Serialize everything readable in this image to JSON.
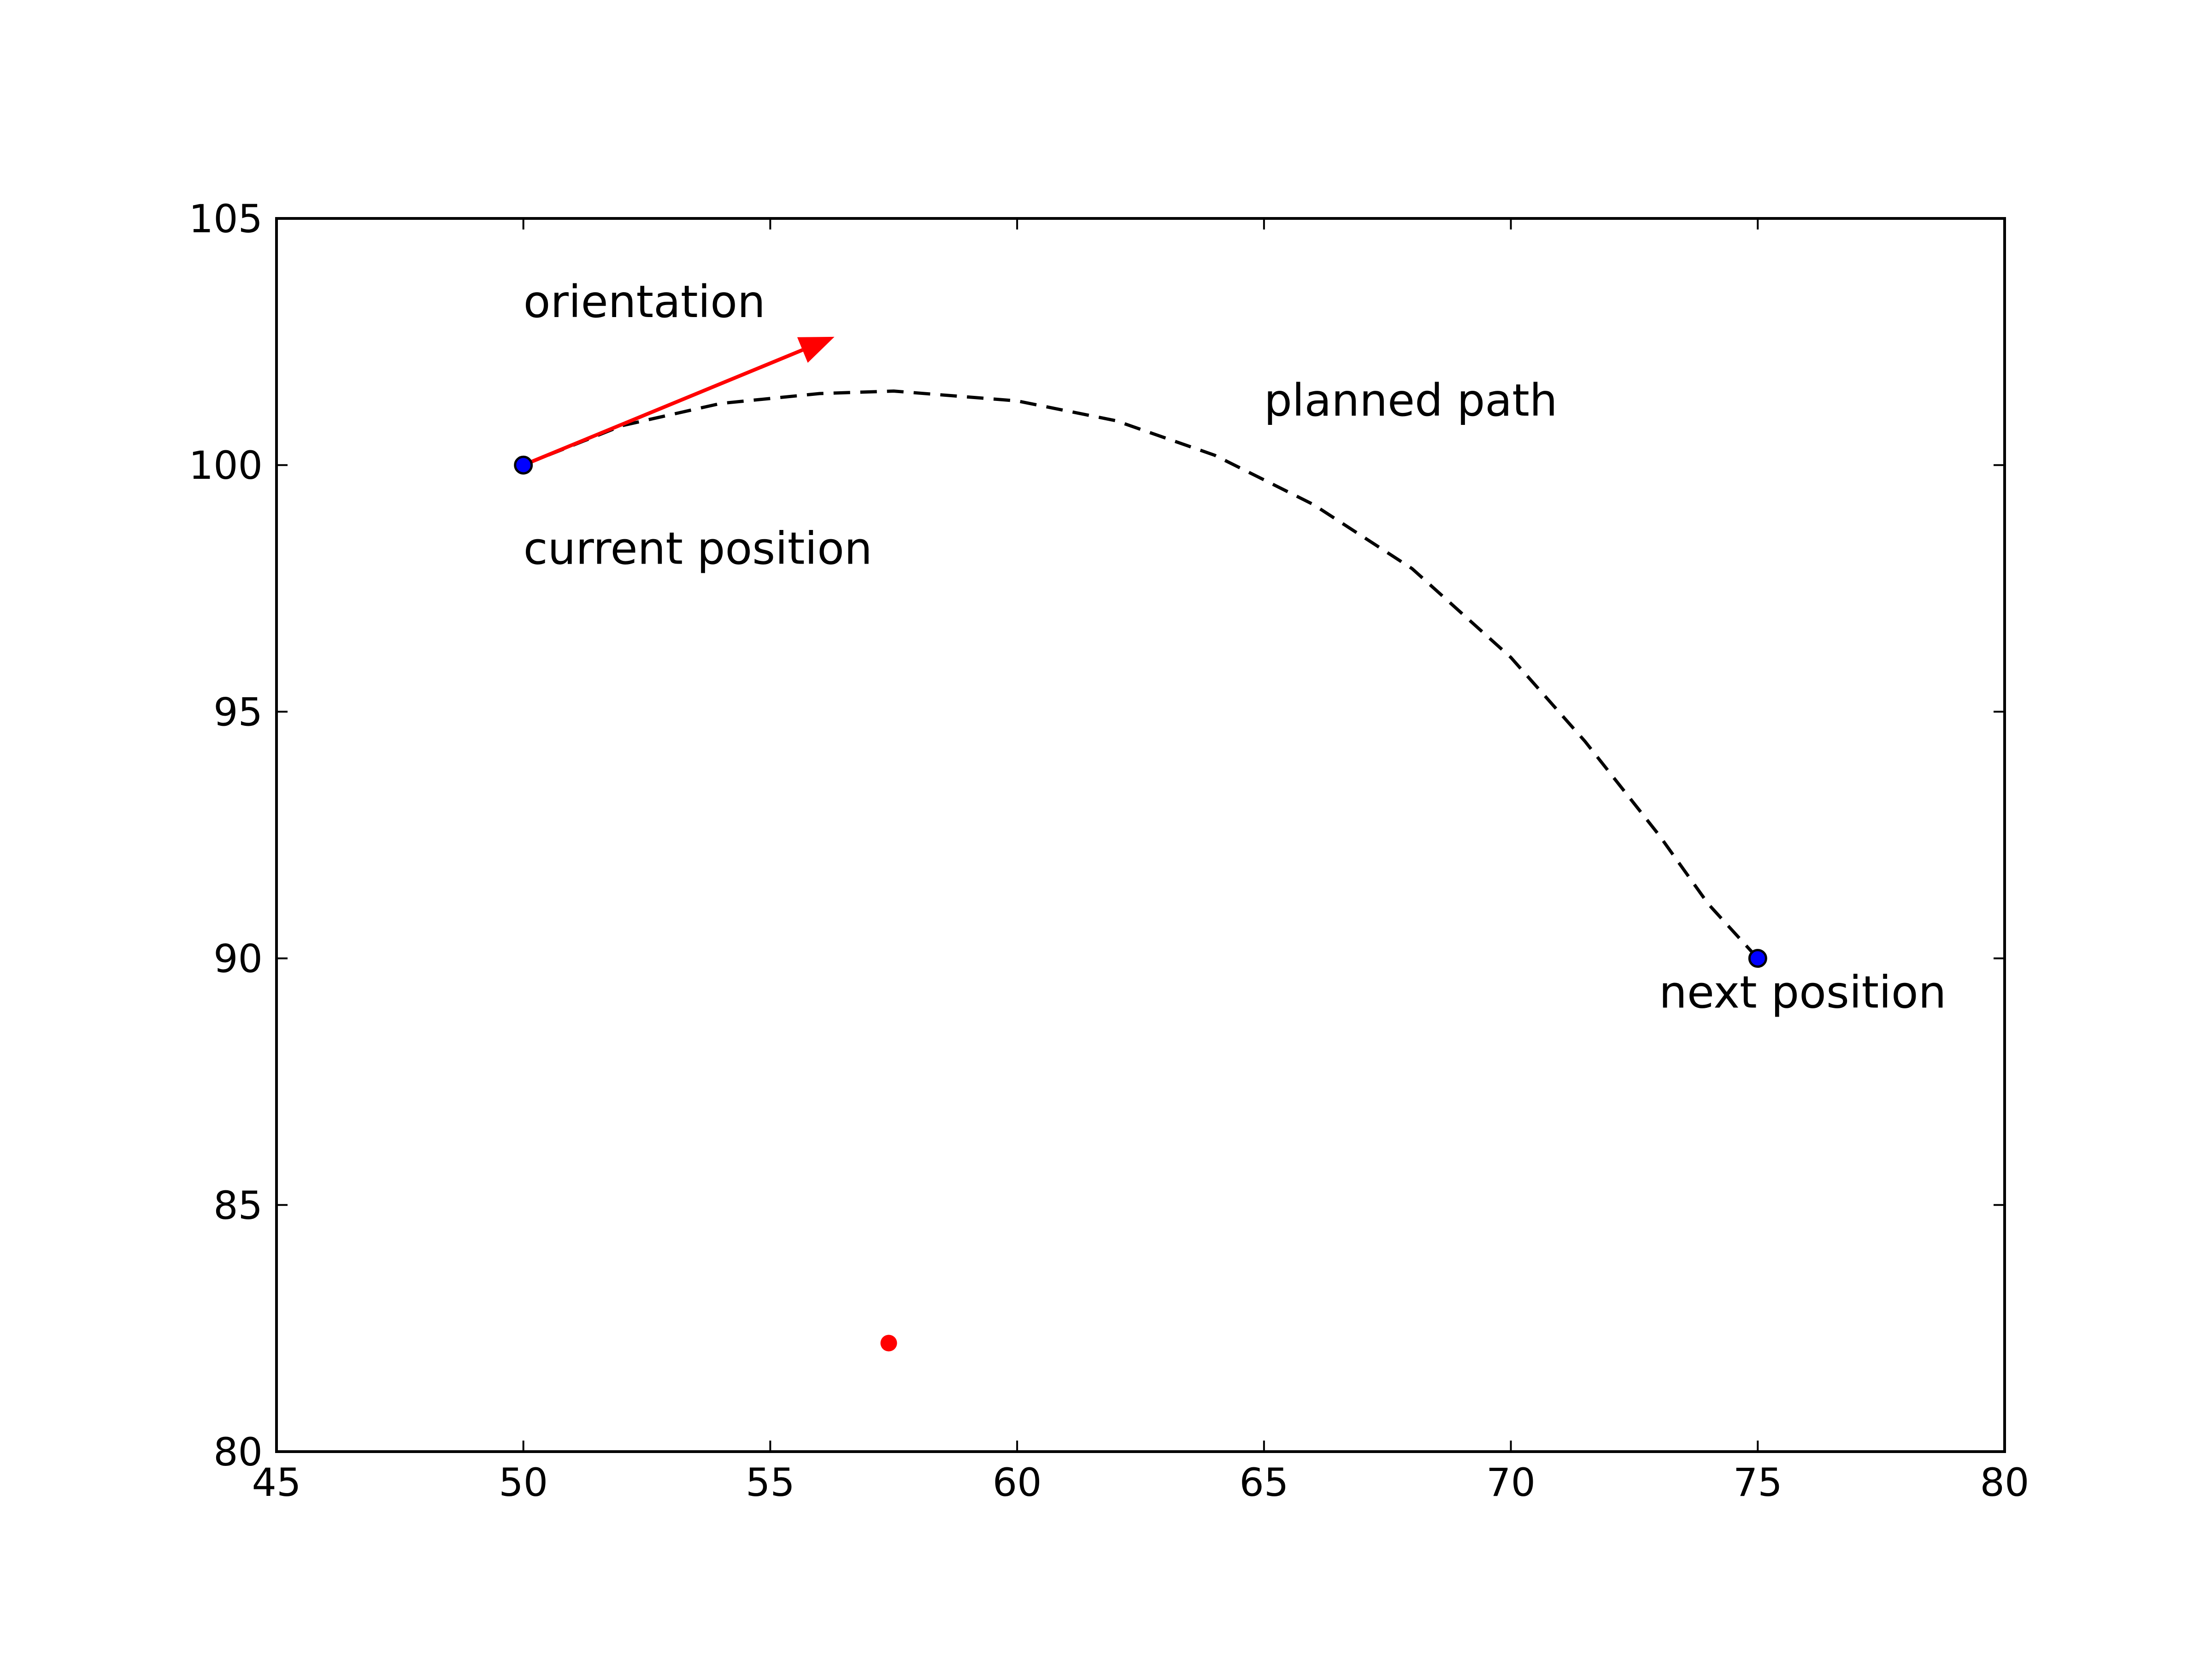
{
  "chart_data": {
    "type": "scatter",
    "title": "",
    "xlabel": "",
    "ylabel": "",
    "xlim": [
      45,
      80
    ],
    "ylim": [
      80,
      105
    ],
    "xticks": [
      "45",
      "50",
      "55",
      "60",
      "65",
      "70",
      "75",
      "80"
    ],
    "yticks": [
      "80",
      "85",
      "90",
      "95",
      "100",
      "105"
    ],
    "grid": false,
    "points": [
      {
        "x": 50,
        "y": 100,
        "color": "#0000ff"
      },
      {
        "x": 75,
        "y": 90,
        "color": "#0000ff"
      },
      {
        "x": 57.4,
        "y": 82.2,
        "color": "#ff0000"
      }
    ],
    "planned_path": {
      "color": "#000000",
      "style": "dashed",
      "x": [
        50,
        52,
        54,
        56,
        57.5,
        60,
        62,
        64,
        66,
        68,
        70,
        71.5,
        73,
        74,
        75
      ],
      "y": [
        100,
        100.8,
        101.25,
        101.45,
        101.5,
        101.3,
        100.9,
        100.2,
        99.2,
        97.9,
        96.1,
        94.4,
        92.5,
        91.1,
        90
      ]
    },
    "orientation_arrow": {
      "x": [
        50,
        56.3
      ],
      "y": [
        100,
        102.6
      ],
      "color": "#ff0000"
    },
    "annotations": [
      {
        "text": "orientation",
        "x": 50,
        "y": 103
      },
      {
        "text": "planned path",
        "x": 65,
        "y": 101
      },
      {
        "text": "current position",
        "x": 50,
        "y": 98
      },
      {
        "text": "next position",
        "x": 73,
        "y": 89
      }
    ]
  }
}
